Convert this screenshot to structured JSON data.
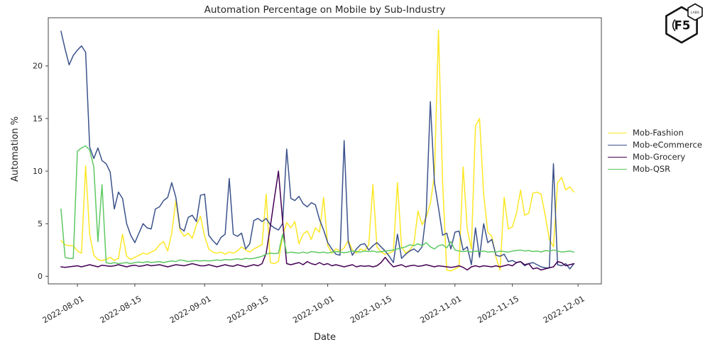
{
  "figure": {
    "title": "Automation Percentage on Mobile by Sub-Industry",
    "xlabel": "Date",
    "ylabel": "Automation %"
  },
  "branding": {
    "logo_text": "F5",
    "logo_sub": "LABS"
  },
  "legend": {
    "position": "right",
    "entries": [
      {
        "label": "Mob-Fashion",
        "color": "#fde725"
      },
      {
        "label": "Mob-eCommerce",
        "color": "#3b528b"
      },
      {
        "label": "Mob-Grocery",
        "color": "#440154"
      },
      {
        "label": "Mob-QSR",
        "color": "#5ec962"
      }
    ]
  },
  "chart_data": {
    "type": "line",
    "title": "Automation Percentage on Mobile by Sub-Industry",
    "xlabel": "Date",
    "ylabel": "Automation %",
    "grid": false,
    "legend_position": "right-outside",
    "x_start_date": "2022-07-28",
    "x_frequency": "daily",
    "x_tick_labels": [
      "2022-08-01",
      "2022-08-15",
      "2022-09-01",
      "2022-09-15",
      "2022-10-01",
      "2022-10-15",
      "2022-11-01",
      "2022-11-15",
      "2022-12-01"
    ],
    "y_ticks": [
      0,
      5,
      10,
      15,
      20
    ],
    "ylim": [
      -0.8,
      24.6
    ],
    "series": [
      {
        "name": "Mob-Fashion",
        "color": "#fde725",
        "values": [
          3.4,
          3.0,
          2.9,
          2.9,
          2.4,
          2.2,
          10.5,
          4.0,
          2.0,
          1.6,
          1.5,
          1.6,
          1.8,
          1.5,
          1.7,
          4.0,
          1.9,
          1.6,
          1.8,
          2.0,
          2.2,
          2.1,
          2.3,
          2.5,
          3.0,
          3.3,
          2.4,
          4.1,
          7.2,
          4.4,
          3.8,
          4.1,
          3.6,
          4.9,
          5.7,
          3.8,
          2.6,
          2.3,
          2.2,
          2.3,
          2.1,
          2.3,
          2.2,
          2.4,
          2.8,
          2.5,
          2.3,
          2.6,
          2.8,
          3.0,
          7.8,
          1.3,
          1.2,
          1.4,
          3.8,
          5.1,
          4.6,
          5.2,
          3.1,
          4.0,
          4.3,
          3.5,
          4.6,
          4.2,
          7.5,
          2.9,
          2.2,
          2.6,
          2.4,
          2.7,
          3.4,
          2.5,
          2.2,
          2.6,
          2.4,
          3.0,
          8.7,
          2.8,
          2.3,
          2.1,
          2.2,
          2.4,
          8.9,
          2.8,
          2.2,
          2.5,
          3.1,
          6.2,
          4.9,
          5.6,
          6.9,
          9.6,
          23.4,
          8.9,
          0.6,
          0.5,
          0.7,
          0.9,
          10.4,
          4.5,
          2.6,
          14.3,
          15.0,
          7.8,
          4.2,
          3.8,
          1.8,
          0.6,
          7.5,
          4.5,
          4.7,
          6.0,
          8.2,
          5.8,
          6.0,
          7.9,
          8.0,
          7.8,
          5.8,
          3.5,
          2.8,
          8.9,
          9.4,
          8.2,
          8.5,
          8.0
        ]
      },
      {
        "name": "Mob-eCommerce",
        "color": "#3b528b",
        "values": [
          23.3,
          21.6,
          20.1,
          21.0,
          21.5,
          21.9,
          21.3,
          12.3,
          11.2,
          12.2,
          11.0,
          10.7,
          9.9,
          6.4,
          8.0,
          7.4,
          5.0,
          3.9,
          3.2,
          4.1,
          5.0,
          4.6,
          4.5,
          6.4,
          6.6,
          7.2,
          7.5,
          8.9,
          7.5,
          4.6,
          4.3,
          5.6,
          5.8,
          5.2,
          7.7,
          7.8,
          3.9,
          3.4,
          3.0,
          3.7,
          4.0,
          9.3,
          4.0,
          3.8,
          4.1,
          2.6,
          3.1,
          5.3,
          5.5,
          5.2,
          5.5,
          4.9,
          4.6,
          4.4,
          5.0,
          12.1,
          7.4,
          7.2,
          7.6,
          6.9,
          6.6,
          7.0,
          6.8,
          5.4,
          4.4,
          3.2,
          2.6,
          2.1,
          2.0,
          12.9,
          3.3,
          2.0,
          2.6,
          3.0,
          3.1,
          2.5,
          2.9,
          3.2,
          2.8,
          2.4,
          1.9,
          1.3,
          4.0,
          1.7,
          2.1,
          2.4,
          2.6,
          2.3,
          2.8,
          6.0,
          16.6,
          8.9,
          6.5,
          3.9,
          4.1,
          2.6,
          4.2,
          4.3,
          2.5,
          2.8,
          1.1,
          4.6,
          1.8,
          5.0,
          3.2,
          3.5,
          2.0,
          1.9,
          2.1,
          1.4,
          1.5,
          1.3,
          1.4,
          1.0,
          1.2,
          1.3,
          1.1,
          0.9,
          0.8,
          0.8,
          10.7,
          1.1,
          1.0,
          1.2,
          0.7,
          1.2
        ]
      },
      {
        "name": "Mob-Grocery",
        "color": "#440154",
        "values": [
          0.9,
          0.85,
          0.9,
          0.95,
          1.0,
          0.9,
          1.0,
          1.1,
          1.0,
          0.9,
          1.05,
          1.0,
          0.95,
          1.0,
          1.1,
          1.0,
          0.9,
          1.0,
          1.05,
          0.95,
          1.0,
          1.1,
          1.0,
          1.05,
          1.1,
          1.0,
          0.9,
          1.0,
          1.1,
          1.05,
          1.0,
          1.1,
          1.2,
          1.1,
          1.0,
          1.0,
          1.1,
          1.0,
          0.9,
          1.0,
          1.1,
          1.0,
          0.95,
          1.1,
          1.0,
          0.9,
          1.0,
          1.1,
          1.0,
          1.2,
          2.2,
          4.7,
          7.4,
          10.0,
          5.3,
          1.2,
          1.1,
          1.2,
          1.3,
          1.1,
          1.4,
          1.2,
          1.1,
          1.3,
          1.1,
          1.2,
          1.0,
          1.1,
          1.0,
          0.9,
          1.0,
          1.1,
          0.9,
          1.0,
          0.95,
          1.0,
          0.9,
          1.0,
          1.3,
          1.8,
          1.3,
          0.9,
          1.0,
          1.1,
          0.9,
          1.0,
          1.05,
          0.95,
          1.0,
          1.1,
          1.0,
          0.9,
          1.0,
          0.95,
          0.9,
          0.85,
          0.9,
          1.0,
          0.85,
          0.6,
          0.9,
          1.0,
          0.9,
          1.0,
          0.95,
          0.9,
          1.0,
          0.9,
          1.0,
          1.1,
          1.0,
          1.3,
          1.4,
          1.1,
          1.2,
          0.7,
          0.8,
          0.6,
          0.7,
          0.8,
          0.9,
          1.4,
          1.3,
          1.0,
          1.1,
          1.2
        ]
      },
      {
        "name": "Mob-QSR",
        "color": "#5ec962",
        "values": [
          6.4,
          1.8,
          1.7,
          1.7,
          11.9,
          12.2,
          12.4,
          12.0,
          10.4,
          3.3,
          8.7,
          1.3,
          1.2,
          1.3,
          1.2,
          1.25,
          1.3,
          1.2,
          1.3,
          1.35,
          1.3,
          1.4,
          1.3,
          1.35,
          1.4,
          1.3,
          1.4,
          1.45,
          1.4,
          1.55,
          1.5,
          1.4,
          1.45,
          1.5,
          1.45,
          1.5,
          1.45,
          1.5,
          1.55,
          1.5,
          1.6,
          1.55,
          1.6,
          1.65,
          1.6,
          1.7,
          1.65,
          1.7,
          1.8,
          1.9,
          2.1,
          2.2,
          2.15,
          2.2,
          4.0,
          2.2,
          2.3,
          2.25,
          2.2,
          2.3,
          2.2,
          2.35,
          2.3,
          2.25,
          2.3,
          2.2,
          2.3,
          2.35,
          2.3,
          2.25,
          2.3,
          2.4,
          2.35,
          2.3,
          2.4,
          2.35,
          2.4,
          2.3,
          2.35,
          2.4,
          2.45,
          2.5,
          2.6,
          2.7,
          2.8,
          3.0,
          2.9,
          3.1,
          2.9,
          3.2,
          2.8,
          2.6,
          2.9,
          3.0,
          2.7,
          3.3,
          2.5,
          2.4,
          2.35,
          2.4,
          2.3,
          2.4,
          2.35,
          2.4,
          2.3,
          2.35,
          2.3,
          2.4,
          2.35,
          2.3,
          2.4,
          2.45,
          2.5,
          2.4,
          2.45,
          2.35,
          2.4,
          2.3,
          2.45,
          2.4,
          2.5,
          2.4,
          2.3,
          2.35,
          2.4,
          2.3
        ]
      }
    ]
  }
}
